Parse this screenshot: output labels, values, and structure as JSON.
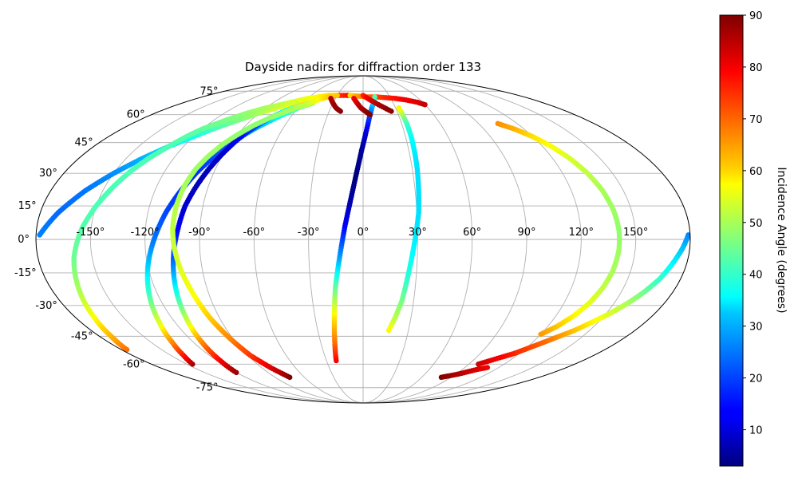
{
  "chart_data": {
    "type": "scatter",
    "projection": "mollweide",
    "title": "Dayside nadirs for diffraction order 133",
    "lon_ticks": [
      "-150°",
      "-120°",
      "-90°",
      "-60°",
      "-30°",
      "0°",
      "30°",
      "60°",
      "90°",
      "120°",
      "150°"
    ],
    "lat_ticks": [
      "75°",
      "60°",
      "45°",
      "30°",
      "15°",
      "0°",
      "-15°",
      "-30°",
      "-45°",
      "-60°",
      "-75°"
    ],
    "lon_grid": [
      -150,
      -120,
      -90,
      -60,
      -30,
      0,
      30,
      60,
      90,
      120,
      150
    ],
    "lat_grid": [
      -75,
      -60,
      -45,
      -30,
      -15,
      0,
      15,
      30,
      45,
      60,
      75
    ],
    "grid": true,
    "colorbar": {
      "label": "Incidence Angle (degrees)",
      "colormap": "jet",
      "vmin": 3,
      "vmax": 90,
      "ticks": [
        "10",
        "20",
        "30",
        "40",
        "50",
        "60",
        "70",
        "80",
        "90"
      ],
      "tick_values": [
        10,
        20,
        30,
        40,
        50,
        60,
        70,
        80,
        90
      ]
    },
    "tracks": [
      {
        "lon": [
          -178,
          -170,
          -160,
          -150,
          -140,
          -130,
          -120,
          -110,
          -100,
          -90,
          -80,
          -70,
          -60,
          -50,
          -40,
          -30,
          -20,
          -15
        ],
        "lat": [
          2,
          12,
          22,
          30,
          37,
          43,
          48,
          53,
          57,
          61,
          64,
          67,
          69,
          70,
          71,
          72,
          72,
          72
        ],
        "angle": [
          25,
          23,
          24,
          26,
          29,
          33,
          37,
          42,
          46,
          50,
          54,
          58,
          62,
          66,
          70,
          74,
          77,
          80
        ]
      },
      {
        "lon": [
          -15,
          -5,
          5,
          15,
          25,
          35,
          45,
          55,
          60
        ],
        "lat": [
          72,
          71.5,
          71,
          71,
          70.5,
          70,
          69,
          67.5,
          66
        ],
        "angle": [
          60,
          66,
          70,
          73,
          76,
          78,
          80,
          82,
          84
        ]
      },
      {
        "lon": [
          -176,
          -172,
          -168,
          -164,
          -160,
          -155,
          -150,
          -145,
          -140,
          -135,
          -130,
          -125,
          -120,
          -110,
          -100,
          -90,
          -80,
          -70,
          -60,
          -50,
          -40,
          -30
        ],
        "lat": [
          -52,
          -45,
          -35,
          -22,
          -8,
          5,
          15,
          24,
          32,
          38,
          43,
          48,
          52,
          57,
          61,
          64,
          66,
          68,
          70,
          71,
          72,
          72
        ],
        "angle": [
          70,
          64,
          57,
          50,
          45,
          43,
          42,
          42,
          42,
          42,
          42,
          43,
          44,
          46,
          48,
          50,
          52,
          54,
          56,
          58,
          60,
          62
        ]
      },
      {
        "lon": [
          -145,
          -140,
          -135,
          -130,
          -125,
          -120,
          -115,
          -110,
          -105,
          -100,
          -95,
          -90,
          -85,
          -80,
          -70,
          -60,
          -50
        ],
        "lat": [
          -60,
          -55,
          -48,
          -38,
          -25,
          -12,
          0,
          12,
          22,
          31,
          38,
          44,
          49,
          53,
          59,
          64,
          67
        ],
        "angle": [
          87,
          78,
          68,
          55,
          42,
          32,
          24,
          20,
          18,
          18,
          20,
          22,
          25,
          29,
          36,
          43,
          50
        ]
      },
      {
        "lon": [
          -120,
          -117,
          -114,
          -111,
          -108,
          -105,
          -102,
          -100,
          -97,
          -94,
          -91,
          -88,
          -85,
          -80,
          -75,
          -70,
          -65,
          -60
        ],
        "lat": [
          -65,
          -58,
          -48,
          -36,
          -22,
          -8,
          5,
          15,
          24,
          32,
          39,
          45,
          50,
          55,
          59,
          62,
          64,
          65
        ],
        "angle": [
          88,
          80,
          68,
          52,
          36,
          22,
          14,
          10,
          8,
          8,
          9,
          12,
          16,
          22,
          29,
          36,
          42,
          48
        ]
      },
      {
        "lon": [
          -75,
          -82,
          -88,
          -92,
          -96,
          -99,
          -102,
          -104,
          -105,
          -105,
          -104,
          -102,
          -99,
          -95,
          -90,
          -84,
          -77,
          -70,
          -63,
          -56,
          -50,
          -44,
          -38
        ],
        "lat": [
          -68,
          -62,
          -55,
          -46,
          -36,
          -25,
          -14,
          -4,
          5,
          15,
          24,
          32,
          38,
          44,
          49,
          54,
          58,
          61,
          64,
          66,
          68,
          70,
          71
        ],
        "angle": [
          90,
          82,
          75,
          68,
          62,
          57,
          55,
          53,
          52,
          51,
          50,
          49,
          49,
          49,
          48,
          48,
          48,
          49,
          50,
          52,
          55,
          59,
          62
        ]
      },
      {
        "lon": [
          -22,
          -20,
          -18,
          -16,
          -13,
          -10,
          -7,
          -4,
          -1,
          2,
          5,
          8,
          11,
          13
        ],
        "lat": [
          -58,
          -48,
          -36,
          -22,
          -8,
          6,
          18,
          30,
          41,
          50,
          58,
          64,
          68,
          71
        ],
        "angle": [
          80,
          70,
          60,
          45,
          28,
          14,
          6,
          3,
          5,
          10,
          18,
          26,
          34,
          42
        ]
      },
      {
        "lon": [
          17,
          20,
          23,
          25,
          27,
          29,
          31,
          32,
          33,
          33.5,
          34,
          34,
          33.5,
          33
        ],
        "lat": [
          -42,
          -36,
          -28,
          -18,
          -8,
          2,
          12,
          22,
          32,
          40,
          48,
          55,
          60,
          64
        ],
        "angle": [
          58,
          52,
          46,
          40,
          36,
          34,
          33,
          33,
          33,
          34,
          36,
          40,
          48,
          58
        ]
      },
      {
        "lon": [
          -35,
          -30,
          -25,
          -20
        ],
        "lat": [
          70,
          67,
          64,
          62
        ],
        "angle": [
          85,
          87,
          88,
          89
        ]
      },
      {
        "lon": [
          -10,
          -6,
          -2,
          2,
          6
        ],
        "lat": [
          70,
          67,
          64,
          62,
          60
        ],
        "angle": [
          80,
          83,
          86,
          88,
          90
        ]
      },
      {
        "lon": [
          0,
          5,
          10,
          15,
          20,
          25
        ],
        "lat": [
          72,
          70,
          68,
          66,
          64,
          62
        ],
        "angle": [
          76,
          80,
          83,
          86,
          88,
          89
        ]
      },
      {
        "lon": [
          105,
          113,
          120,
          126,
          131,
          135,
          138,
          140,
          141,
          141,
          140,
          138,
          135,
          131,
          126,
          120
        ],
        "lat": [
          55,
          52,
          48,
          43,
          37,
          30,
          22,
          13,
          4,
          -5,
          -14,
          -22,
          -29,
          -35,
          -40,
          -44
        ],
        "angle": [
          67,
          64,
          60,
          57,
          54,
          52,
          50,
          49,
          48,
          49,
          50,
          52,
          55,
          58,
          62,
          66
        ]
      },
      {
        "lon": [
          179,
          176,
          172,
          168,
          163,
          158,
          152,
          146,
          140,
          134,
          128,
          122,
          116,
          110,
          104,
          98
        ],
        "lat": [
          2,
          -4,
          -11,
          -18,
          -24,
          -29,
          -34,
          -38,
          -42,
          -45,
          -48,
          -51,
          -54,
          -56,
          -58,
          -60
        ],
        "angle": [
          25,
          30,
          35,
          40,
          45,
          50,
          54,
          58,
          62,
          66,
          70,
          73,
          76,
          79,
          81,
          83
        ]
      },
      {
        "lon": [
          80,
          86,
          92,
          98,
          104,
          110
        ],
        "lat": [
          -68,
          -67,
          -66,
          -64.5,
          -63,
          -62
        ],
        "angle": [
          90,
          88,
          86,
          84,
          82,
          80
        ]
      }
    ]
  }
}
